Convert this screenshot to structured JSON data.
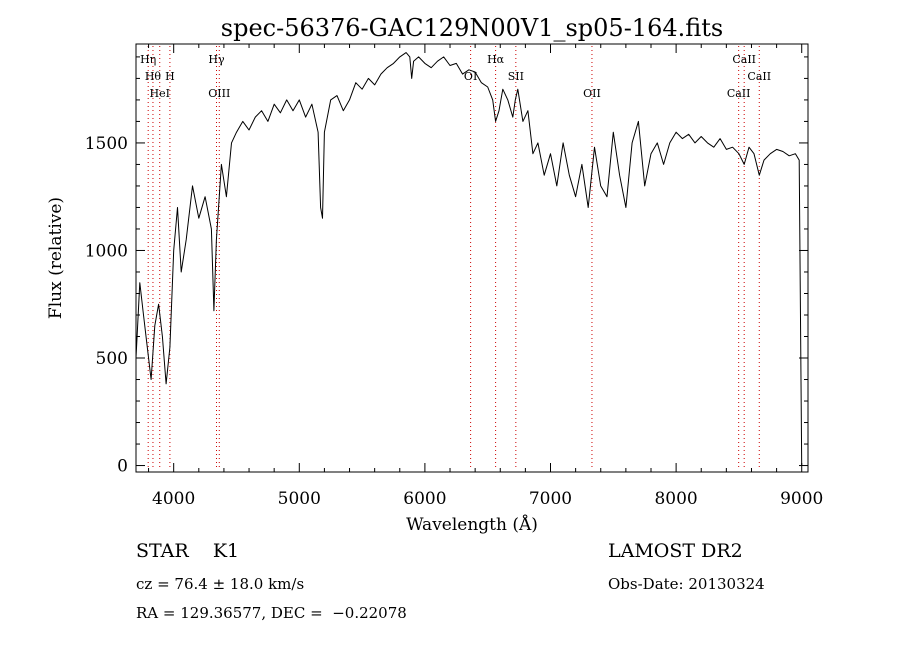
{
  "chart_data": {
    "type": "line",
    "title": "spec-56376-GAC129N00V1_sp05-164.fits",
    "xlabel": "Wavelength (Å)",
    "ylabel": "Flux (relative)",
    "xlim": [
      3700,
      9050
    ],
    "ylim": [
      -30,
      1960
    ],
    "xticks": [
      4000,
      5000,
      6000,
      7000,
      8000,
      9000
    ],
    "yticks": [
      0,
      500,
      1000,
      1500
    ],
    "grid": false,
    "legend": "none",
    "line_color": "#000000",
    "marker_color": "#cc0000",
    "series": [
      {
        "x": [
          3700,
          3730,
          3760,
          3790,
          3820,
          3850,
          3880,
          3910,
          3940,
          3970,
          4000,
          4030,
          4060,
          4100,
          4150,
          4200,
          4250,
          4300,
          4320,
          4340,
          4380,
          4420,
          4460,
          4500,
          4550,
          4600,
          4650,
          4700,
          4750,
          4800,
          4850,
          4900,
          4950,
          5000,
          5050,
          5100,
          5150,
          5170,
          5185,
          5200,
          5250,
          5300,
          5350,
          5400,
          5450,
          5500,
          5550,
          5600,
          5650,
          5700,
          5750,
          5800,
          5850,
          5880,
          5895,
          5910,
          5950,
          6000,
          6050,
          6100,
          6150,
          6200,
          6250,
          6300,
          6350,
          6400,
          6450,
          6500,
          6540,
          6563,
          6590,
          6620,
          6660,
          6700,
          6720,
          6740,
          6780,
          6820,
          6860,
          6900,
          6950,
          7000,
          7050,
          7100,
          7150,
          7200,
          7250,
          7300,
          7350,
          7400,
          7450,
          7500,
          7550,
          7600,
          7650,
          7700,
          7750,
          7800,
          7850,
          7900,
          7950,
          8000,
          8050,
          8100,
          8150,
          8200,
          8250,
          8300,
          8350,
          8400,
          8450,
          8500,
          8542,
          8580,
          8620,
          8662,
          8700,
          8750,
          8800,
          8850,
          8900,
          8950,
          8980,
          9000
        ],
        "y": [
          500,
          850,
          700,
          550,
          400,
          650,
          750,
          600,
          380,
          550,
          1000,
          1200,
          900,
          1050,
          1300,
          1150,
          1250,
          1100,
          720,
          1050,
          1400,
          1250,
          1500,
          1550,
          1600,
          1560,
          1620,
          1650,
          1600,
          1680,
          1640,
          1700,
          1650,
          1700,
          1620,
          1680,
          1550,
          1200,
          1150,
          1550,
          1700,
          1720,
          1650,
          1700,
          1780,
          1750,
          1800,
          1770,
          1820,
          1850,
          1870,
          1900,
          1920,
          1900,
          1800,
          1880,
          1900,
          1870,
          1850,
          1880,
          1900,
          1860,
          1870,
          1820,
          1840,
          1830,
          1780,
          1760,
          1700,
          1600,
          1650,
          1750,
          1700,
          1620,
          1700,
          1750,
          1600,
          1650,
          1450,
          1500,
          1350,
          1450,
          1300,
          1500,
          1350,
          1250,
          1400,
          1200,
          1480,
          1300,
          1250,
          1550,
          1350,
          1200,
          1500,
          1600,
          1300,
          1450,
          1500,
          1400,
          1500,
          1550,
          1520,
          1540,
          1500,
          1530,
          1500,
          1480,
          1520,
          1470,
          1480,
          1450,
          1400,
          1480,
          1450,
          1350,
          1420,
          1450,
          1470,
          1460,
          1440,
          1450,
          1420,
          0
        ]
      }
    ],
    "lines": [
      {
        "wavelength": 3797,
        "label": "Hη",
        "row": 1
      },
      {
        "wavelength": 3835,
        "label": "Hθ",
        "row": 2
      },
      {
        "wavelength": 3889,
        "label": "HeI",
        "row": 3
      },
      {
        "wavelength": 3970,
        "label": "H",
        "row": 2
      },
      {
        "wavelength": 4341,
        "label": "Hγ",
        "row": 1
      },
      {
        "wavelength": 4363,
        "label": "OIII",
        "row": 3
      },
      {
        "wavelength": 6364,
        "label": "OI",
        "row": 2
      },
      {
        "wavelength": 6563,
        "label": "Hα",
        "row": 1
      },
      {
        "wavelength": 6724,
        "label": "SII",
        "row": 2
      },
      {
        "wavelength": 7330,
        "label": "OII",
        "row": 3
      },
      {
        "wavelength": 8498,
        "label": "CaII",
        "row": 3
      },
      {
        "wavelength": 8542,
        "label": "CaII",
        "row": 1
      },
      {
        "wavelength": 8662,
        "label": "CaII",
        "row": 2
      }
    ]
  },
  "info": {
    "class": "STAR    K1",
    "survey": "LAMOST DR2",
    "cz": "cz = 76.4 ± 18.0 km/s",
    "obs_date": "Obs-Date: 20130324",
    "coords": "RA = 129.36577, DEC =  −0.22078"
  }
}
